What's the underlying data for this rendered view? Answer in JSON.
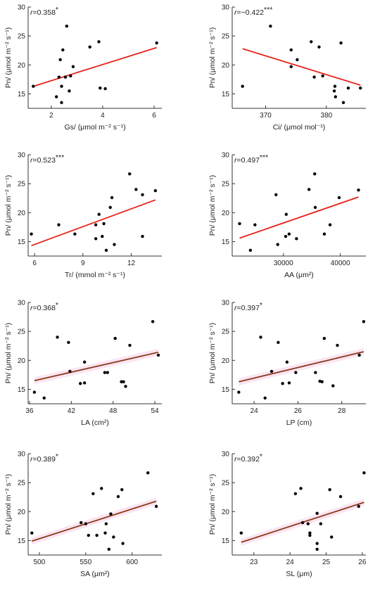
{
  "chart_data": [
    {
      "type": "scatter",
      "r_prefix": "r",
      "r_text": "=0.358",
      "r_sig": "*",
      "xlabel": "Gs/ (μmol m⁻² s⁻¹)",
      "ylabel": "Pn/ (μmol m⁻² s⁻¹)",
      "xlim": [
        1.1,
        6.3
      ],
      "ylim": [
        12.5,
        30
      ],
      "xticks": [
        2,
        4,
        6
      ],
      "yticks": [
        15,
        20,
        25,
        30
      ],
      "points": [
        [
          1.3,
          16.3
        ],
        [
          2.2,
          14.5
        ],
        [
          2.4,
          13.5
        ],
        [
          2.3,
          17.9
        ],
        [
          2.35,
          20.9
        ],
        [
          2.45,
          22.6
        ],
        [
          2.4,
          16.3
        ],
        [
          2.6,
          26.7
        ],
        [
          2.55,
          17.9
        ],
        [
          2.7,
          15.5
        ],
        [
          2.75,
          18.1
        ],
        [
          2.85,
          19.7
        ],
        [
          3.5,
          23.1
        ],
        [
          3.85,
          24.0
        ],
        [
          3.9,
          16.0
        ],
        [
          4.1,
          15.9
        ],
        [
          6.1,
          23.8
        ]
      ],
      "fit": [
        [
          1.3,
          16.3
        ],
        [
          6.1,
          23.0
        ]
      ],
      "line_color": "#e8231c",
      "band": false
    },
    {
      "type": "scatter",
      "r_prefix": "r",
      "r_text": "=−0.422",
      "r_sig": "***",
      "xlabel": "Ci/ (μmol mol⁻¹)",
      "ylabel": "Pn/ (μmol m⁻² s⁻¹)",
      "xlim": [
        364.5,
        386.5
      ],
      "ylim": [
        12.5,
        30
      ],
      "xticks": [
        370,
        380
      ],
      "yticks": [
        15,
        20,
        25,
        30
      ],
      "points": [
        [
          366.2,
          16.3
        ],
        [
          370.8,
          26.7
        ],
        [
          374.2,
          22.6
        ],
        [
          374.2,
          19.7
        ],
        [
          375.2,
          20.9
        ],
        [
          377.5,
          24.0
        ],
        [
          378.0,
          17.9
        ],
        [
          378.8,
          23.1
        ],
        [
          379.4,
          18.1
        ],
        [
          381.3,
          15.5
        ],
        [
          381.4,
          16.3
        ],
        [
          381.5,
          14.5
        ],
        [
          382.4,
          23.8
        ],
        [
          382.8,
          13.5
        ],
        [
          383.6,
          16.0
        ],
        [
          385.6,
          16.0
        ]
      ],
      "fit": [
        [
          366.2,
          22.8
        ],
        [
          385.6,
          16.5
        ]
      ],
      "line_color": "#e8231c",
      "band": false
    },
    {
      "type": "scatter",
      "r_prefix": "r",
      "r_text": "=0.523",
      "r_sig": "***",
      "xlabel": "Tr/ (mmol m⁻² s⁻¹)",
      "ylabel": "Pn/ (μmol m⁻² s⁻¹)",
      "xlim": [
        5.6,
        13.9
      ],
      "ylim": [
        12.5,
        30
      ],
      "xticks": [
        6,
        9,
        12
      ],
      "yticks": [
        15,
        20,
        25,
        30
      ],
      "points": [
        [
          5.8,
          16.3
        ],
        [
          7.5,
          17.9
        ],
        [
          8.5,
          16.3
        ],
        [
          9.8,
          17.9
        ],
        [
          9.8,
          15.5
        ],
        [
          10.0,
          19.7
        ],
        [
          10.2,
          15.9
        ],
        [
          10.3,
          18.1
        ],
        [
          10.45,
          13.5
        ],
        [
          10.7,
          20.9
        ],
        [
          10.8,
          22.6
        ],
        [
          10.95,
          14.5
        ],
        [
          11.9,
          26.7
        ],
        [
          12.3,
          24.0
        ],
        [
          12.7,
          23.1
        ],
        [
          12.7,
          15.9
        ],
        [
          13.5,
          23.8
        ]
      ],
      "fit": [
        [
          5.8,
          14.3
        ],
        [
          13.5,
          22.2
        ]
      ],
      "line_color": "#e8231c",
      "band": false
    },
    {
      "type": "scatter",
      "r_prefix": "r",
      "r_text": "=0.497",
      "r_sig": "***",
      "xlabel": "AA (μm²)",
      "ylabel": "Pn/ (μmol m⁻² s⁻¹)",
      "xlim": [
        21000,
        44500
      ],
      "ylim": [
        12.5,
        30
      ],
      "xticks": [
        30000,
        40000
      ],
      "yticks": [
        15,
        20,
        25,
        30
      ],
      "points": [
        [
          22300,
          18.1
        ],
        [
          24200,
          13.5
        ],
        [
          25000,
          17.9
        ],
        [
          28700,
          23.1
        ],
        [
          29000,
          14.5
        ],
        [
          30400,
          15.9
        ],
        [
          30500,
          19.7
        ],
        [
          31000,
          16.3
        ],
        [
          32300,
          15.5
        ],
        [
          34500,
          24.0
        ],
        [
          35500,
          26.7
        ],
        [
          35600,
          20.9
        ],
        [
          37200,
          16.3
        ],
        [
          38200,
          17.9
        ],
        [
          39800,
          22.6
        ],
        [
          43200,
          23.9
        ]
      ],
      "fit": [
        [
          22300,
          15.6
        ],
        [
          43200,
          22.7
        ]
      ],
      "line_color": "#e8231c",
      "band": false
    },
    {
      "type": "scatter",
      "r_prefix": "r",
      "r_text": "=0.368",
      "r_sig": "*",
      "xlabel": "LA (cm²)",
      "ylabel": "Pn/ (μmol m⁻² s⁻¹)",
      "xlim": [
        35.8,
        55
      ],
      "ylim": [
        12.5,
        30
      ],
      "xticks": [
        36,
        42,
        48,
        54
      ],
      "yticks": [
        15,
        20,
        25,
        30
      ],
      "points": [
        [
          36.7,
          14.5
        ],
        [
          38.1,
          13.5
        ],
        [
          40.0,
          24.0
        ],
        [
          41.6,
          23.1
        ],
        [
          41.8,
          18.1
        ],
        [
          43.3,
          16.0
        ],
        [
          43.9,
          19.7
        ],
        [
          43.9,
          16.1
        ],
        [
          46.8,
          17.9
        ],
        [
          47.2,
          17.9
        ],
        [
          48.3,
          23.8
        ],
        [
          49.2,
          16.3
        ],
        [
          49.5,
          16.3
        ],
        [
          49.8,
          15.5
        ],
        [
          50.4,
          22.6
        ],
        [
          53.7,
          26.7
        ],
        [
          54.5,
          20.9
        ]
      ],
      "fit": [
        [
          36.7,
          16.5
        ],
        [
          54.5,
          21.4
        ]
      ],
      "line_color": "#8b3a1a",
      "band": true
    },
    {
      "type": "scatter",
      "r_prefix": "r",
      "r_text": "=0.397",
      "r_sig": "*",
      "xlabel": "LP (cm)",
      "ylabel": "Pn/ (μmol m⁻² s⁻¹)",
      "xlim": [
        23.0,
        29.1
      ],
      "ylim": [
        12.5,
        30
      ],
      "xticks": [
        24,
        26,
        28
      ],
      "yticks": [
        15,
        20,
        25,
        30
      ],
      "points": [
        [
          23.3,
          14.5
        ],
        [
          24.3,
          24.0
        ],
        [
          24.5,
          13.5
        ],
        [
          24.8,
          18.1
        ],
        [
          25.1,
          23.1
        ],
        [
          25.3,
          16.0
        ],
        [
          25.5,
          19.7
        ],
        [
          25.6,
          16.1
        ],
        [
          25.9,
          17.9
        ],
        [
          26.8,
          17.9
        ],
        [
          27.0,
          16.4
        ],
        [
          27.1,
          16.3
        ],
        [
          27.2,
          23.8
        ],
        [
          27.6,
          15.6
        ],
        [
          27.8,
          22.6
        ],
        [
          28.8,
          20.9
        ],
        [
          29.0,
          26.7
        ]
      ],
      "fit": [
        [
          23.3,
          16.3
        ],
        [
          29.0,
          21.5
        ]
      ],
      "line_color": "#8b3a1a",
      "band": true
    },
    {
      "type": "scatter",
      "r_prefix": "r",
      "r_text": "=0.389",
      "r_sig": "*",
      "xlabel": "SA (μm²)",
      "ylabel": "Pn/ (μmol m⁻² s⁻¹)",
      "xlim": [
        488,
        632
      ],
      "ylim": [
        12.5,
        30
      ],
      "xticks": [
        500,
        550,
        600
      ],
      "yticks": [
        15,
        20,
        25,
        30
      ],
      "points": [
        [
          492,
          16.3
        ],
        [
          545,
          18.1
        ],
        [
          550,
          17.9
        ],
        [
          553,
          15.9
        ],
        [
          558,
          23.1
        ],
        [
          562,
          15.9
        ],
        [
          567,
          24.0
        ],
        [
          571,
          16.3
        ],
        [
          572,
          17.9
        ],
        [
          575,
          13.5
        ],
        [
          577,
          19.6
        ],
        [
          580,
          15.6
        ],
        [
          585,
          22.6
        ],
        [
          589,
          23.8
        ],
        [
          590,
          14.5
        ],
        [
          617,
          26.7
        ],
        [
          626,
          20.9
        ]
      ],
      "fit": [
        [
          492,
          14.9
        ],
        [
          626,
          21.8
        ]
      ],
      "line_color": "#8b3a1a",
      "band": true
    },
    {
      "type": "scatter",
      "r_prefix": "r",
      "r_text": "=0.392",
      "r_sig": "*",
      "xlabel": "SL (μm)",
      "ylabel": "Pn/ (μmol m⁻² s⁻¹)",
      "xlim": [
        22.4,
        26.1
      ],
      "ylim": [
        12.5,
        30
      ],
      "xticks": [
        23,
        24,
        25,
        26
      ],
      "yticks": [
        15,
        20,
        25,
        30
      ],
      "points": [
        [
          22.65,
          16.3
        ],
        [
          24.15,
          23.1
        ],
        [
          24.3,
          24.0
        ],
        [
          24.35,
          18.1
        ],
        [
          24.5,
          17.9
        ],
        [
          24.55,
          16.3
        ],
        [
          24.55,
          15.9
        ],
        [
          24.75,
          14.5
        ],
        [
          24.75,
          13.5
        ],
        [
          24.75,
          19.7
        ],
        [
          24.85,
          17.9
        ],
        [
          25.1,
          23.8
        ],
        [
          25.15,
          15.6
        ],
        [
          25.4,
          22.6
        ],
        [
          25.9,
          20.9
        ],
        [
          26.05,
          26.7
        ]
      ],
      "fit": [
        [
          22.65,
          14.7
        ],
        [
          26.05,
          21.6
        ]
      ],
      "line_color": "#8b3a1a",
      "band": true
    }
  ]
}
